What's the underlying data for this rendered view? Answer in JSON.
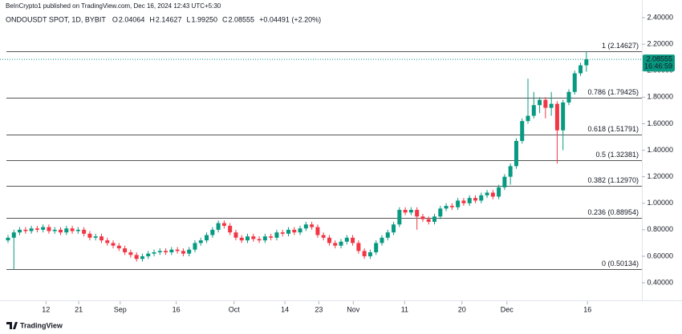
{
  "chart_data": {
    "type": "candlestick",
    "published": "BeInCrypto1 published on TradingView.com, Dec 16, 2024 12:43 UTC+5:30",
    "symbol": "ONDOUSDT SPOT, 1D, BYBIT",
    "ohlc_legend": [
      {
        "key": "O",
        "value": "2.04064"
      },
      {
        "key": "H",
        "value": "2.14627"
      },
      {
        "key": "L",
        "value": "1.99250"
      },
      {
        "key": "C",
        "value": "2.08555"
      }
    ],
    "change": "+0.04491 (+2.20%)",
    "last_price": {
      "value": 2.08555,
      "label": "2.08555",
      "countdown": "16:46:59"
    },
    "brand": "TradingView",
    "up_color": "#089981",
    "down_color": "#f23645",
    "xlim": [
      -1.37,
      108.5
    ],
    "ylim": [
      0.3,
      2.5
    ],
    "xticks": [
      {
        "value": 6.5,
        "label": "12"
      },
      {
        "value": 12.1,
        "label": "21"
      },
      {
        "value": 19.2,
        "label": "Sep"
      },
      {
        "value": 28.8,
        "label": "16"
      },
      {
        "value": 38.7,
        "label": "Oct"
      },
      {
        "value": 47.4,
        "label": "14"
      },
      {
        "value": 53.2,
        "label": "23"
      },
      {
        "value": 59.1,
        "label": "Nov"
      },
      {
        "value": 67.9,
        "label": "11"
      },
      {
        "value": 77.7,
        "label": "20"
      },
      {
        "value": 85.4,
        "label": "Dec"
      },
      {
        "value": 99.2,
        "label": "16"
      }
    ],
    "yticks": [
      {
        "value": 0.4,
        "label": "0.40000"
      },
      {
        "value": 0.6,
        "label": "0.60000"
      },
      {
        "value": 0.8,
        "label": "0.80000"
      },
      {
        "value": 1.0,
        "label": "1.00000"
      },
      {
        "value": 1.2,
        "label": "1.20000"
      },
      {
        "value": 1.4,
        "label": "1.40000"
      },
      {
        "value": 1.6,
        "label": "1.60000"
      },
      {
        "value": 1.8,
        "label": "1.80000"
      },
      {
        "value": 2.0,
        "label": "2.00000"
      },
      {
        "value": 2.2,
        "label": "2.20000"
      },
      {
        "value": 2.4,
        "label": "2.40000"
      }
    ],
    "fib_levels": [
      {
        "value": 2.14627,
        "label": "1 (2.14627)"
      },
      {
        "value": 1.79425,
        "label": "0.786 (1.79425)"
      },
      {
        "value": 1.51791,
        "label": "0.618 (1.51791)"
      },
      {
        "value": 1.32381,
        "label": "0.5 (1.32381)"
      },
      {
        "value": 1.1297,
        "label": "0.382 (1.12970)"
      },
      {
        "value": 0.88954,
        "label": "0.236 (0.88954)"
      },
      {
        "value": 0.50134,
        "label": "0 (0.50134)"
      }
    ],
    "open": [
      0.72,
      0.74,
      0.78,
      0.8,
      0.79,
      0.81,
      0.8,
      0.82,
      0.79,
      0.8,
      0.78,
      0.81,
      0.79,
      0.8,
      0.77,
      0.74,
      0.75,
      0.72,
      0.7,
      0.68,
      0.66,
      0.63,
      0.61,
      0.58,
      0.6,
      0.62,
      0.63,
      0.64,
      0.63,
      0.65,
      0.64,
      0.62,
      0.65,
      0.7,
      0.72,
      0.76,
      0.8,
      0.85,
      0.83,
      0.78,
      0.74,
      0.72,
      0.75,
      0.73,
      0.72,
      0.75,
      0.74,
      0.78,
      0.77,
      0.8,
      0.78,
      0.81,
      0.84,
      0.82,
      0.76,
      0.74,
      0.7,
      0.68,
      0.71,
      0.74,
      0.7,
      0.64,
      0.6,
      0.63,
      0.7,
      0.74,
      0.78,
      0.84,
      0.95,
      0.93,
      0.95,
      0.9,
      0.88,
      0.86,
      0.9,
      0.96,
      0.98,
      0.97,
      1.02,
      1.0,
      1.04,
      1.02,
      1.06,
      1.08,
      1.05,
      1.12,
      1.2,
      1.28,
      1.47,
      1.62,
      1.66,
      1.74,
      1.78,
      1.72,
      1.75,
      1.55,
      1.76,
      1.84,
      1.98,
      2.04064
    ],
    "high": [
      0.76,
      0.8,
      0.82,
      0.82,
      0.83,
      0.83,
      0.84,
      0.84,
      0.82,
      0.82,
      0.83,
      0.83,
      0.82,
      0.82,
      0.79,
      0.77,
      0.77,
      0.74,
      0.72,
      0.7,
      0.68,
      0.65,
      0.63,
      0.62,
      0.64,
      0.65,
      0.66,
      0.66,
      0.67,
      0.67,
      0.66,
      0.67,
      0.72,
      0.74,
      0.78,
      0.82,
      0.87,
      0.87,
      0.85,
      0.8,
      0.76,
      0.77,
      0.77,
      0.75,
      0.77,
      0.77,
      0.8,
      0.8,
      0.82,
      0.82,
      0.83,
      0.86,
      0.86,
      0.84,
      0.78,
      0.76,
      0.72,
      0.73,
      0.76,
      0.76,
      0.72,
      0.66,
      0.65,
      0.72,
      0.76,
      0.8,
      0.86,
      0.97,
      0.97,
      0.97,
      0.97,
      0.92,
      0.9,
      0.92,
      0.98,
      1.0,
      1.0,
      1.04,
      1.04,
      1.06,
      1.06,
      1.08,
      1.1,
      1.1,
      1.14,
      1.22,
      1.3,
      1.49,
      1.64,
      1.94,
      1.84,
      1.8,
      1.8,
      1.84,
      1.77,
      1.78,
      1.86,
      2.0,
      2.06,
      2.14627
    ],
    "low": [
      0.7,
      0.5,
      0.76,
      0.77,
      0.77,
      0.78,
      0.78,
      0.77,
      0.77,
      0.76,
      0.76,
      0.77,
      0.77,
      0.75,
      0.72,
      0.72,
      0.7,
      0.68,
      0.66,
      0.64,
      0.61,
      0.59,
      0.56,
      0.56,
      0.58,
      0.6,
      0.61,
      0.61,
      0.61,
      0.62,
      0.6,
      0.6,
      0.63,
      0.68,
      0.7,
      0.74,
      0.78,
      0.81,
      0.76,
      0.72,
      0.7,
      0.7,
      0.71,
      0.7,
      0.7,
      0.72,
      0.72,
      0.75,
      0.75,
      0.76,
      0.76,
      0.79,
      0.8,
      0.74,
      0.72,
      0.68,
      0.66,
      0.66,
      0.69,
      0.68,
      0.62,
      0.58,
      0.58,
      0.61,
      0.68,
      0.72,
      0.76,
      0.82,
      0.91,
      0.91,
      0.8,
      0.86,
      0.84,
      0.84,
      0.88,
      0.94,
      0.95,
      0.95,
      0.98,
      0.98,
      1.0,
      1.0,
      1.04,
      1.03,
      1.03,
      1.1,
      1.14,
      1.26,
      1.45,
      1.6,
      1.64,
      1.68,
      1.64,
      1.66,
      1.3,
      1.4,
      1.74,
      1.82,
      1.96,
      1.9925
    ],
    "close": [
      0.74,
      0.78,
      0.8,
      0.79,
      0.81,
      0.8,
      0.82,
      0.79,
      0.8,
      0.78,
      0.81,
      0.79,
      0.8,
      0.77,
      0.74,
      0.75,
      0.72,
      0.7,
      0.68,
      0.66,
      0.63,
      0.61,
      0.58,
      0.6,
      0.62,
      0.63,
      0.64,
      0.63,
      0.65,
      0.64,
      0.62,
      0.65,
      0.7,
      0.72,
      0.76,
      0.8,
      0.85,
      0.83,
      0.78,
      0.74,
      0.72,
      0.75,
      0.73,
      0.72,
      0.75,
      0.74,
      0.78,
      0.77,
      0.8,
      0.78,
      0.81,
      0.84,
      0.82,
      0.76,
      0.74,
      0.7,
      0.68,
      0.71,
      0.74,
      0.7,
      0.64,
      0.6,
      0.63,
      0.7,
      0.74,
      0.78,
      0.84,
      0.95,
      0.93,
      0.95,
      0.9,
      0.88,
      0.86,
      0.9,
      0.96,
      0.98,
      0.97,
      1.02,
      1.0,
      1.04,
      1.02,
      1.06,
      1.08,
      1.05,
      1.12,
      1.2,
      1.28,
      1.47,
      1.62,
      1.66,
      1.74,
      1.78,
      1.72,
      1.75,
      1.55,
      1.76,
      1.84,
      1.98,
      2.04064,
      2.08555
    ]
  }
}
